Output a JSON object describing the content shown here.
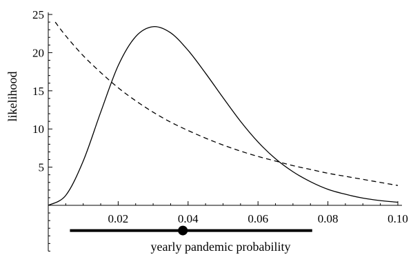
{
  "chart_data": {
    "type": "line",
    "xlabel": "yearly pandemic probability",
    "ylabel": "likelihood",
    "xlim": [
      0,
      0.1
    ],
    "ylim": [
      -6,
      25
    ],
    "x_ticks": [
      0.02,
      0.04,
      0.06,
      0.08,
      0.1
    ],
    "x_tick_labels": [
      "0.02",
      "0.04",
      "0.06",
      "0.08",
      "0.10"
    ],
    "y_ticks": [
      5,
      10,
      15,
      20,
      25
    ],
    "y_tick_labels": [
      "5",
      "10",
      "15",
      "20",
      "25"
    ],
    "series": [
      {
        "style": "solid",
        "x": [
          0,
          0.005,
          0.01,
          0.015,
          0.02,
          0.025,
          0.03,
          0.035,
          0.04,
          0.045,
          0.05,
          0.055,
          0.06,
          0.065,
          0.07,
          0.075,
          0.08,
          0.085,
          0.09,
          0.095,
          0.1
        ],
        "y": [
          0,
          1.3,
          5.8,
          12.2,
          18.3,
          22.1,
          23.4,
          22.6,
          20.3,
          17.3,
          14.1,
          11.0,
          8.3,
          6.1,
          4.4,
          3.1,
          2.1,
          1.45,
          0.95,
          0.62,
          0.4
        ]
      },
      {
        "style": "dashed",
        "x": [
          0.002,
          0.005,
          0.01,
          0.015,
          0.02,
          0.025,
          0.03,
          0.035,
          0.04,
          0.045,
          0.05,
          0.055,
          0.06,
          0.065,
          0.07,
          0.075,
          0.08,
          0.085,
          0.09,
          0.095,
          0.1
        ],
        "y": [
          24.0,
          22.2,
          19.6,
          17.4,
          15.4,
          13.7,
          12.2,
          10.9,
          9.8,
          8.8,
          7.9,
          7.1,
          6.4,
          5.8,
          5.2,
          4.7,
          4.2,
          3.8,
          3.4,
          3.0,
          2.6
        ]
      }
    ],
    "interval": {
      "low": 0.0062,
      "high": 0.0755,
      "point": 0.0385,
      "y": -3.3
    }
  }
}
